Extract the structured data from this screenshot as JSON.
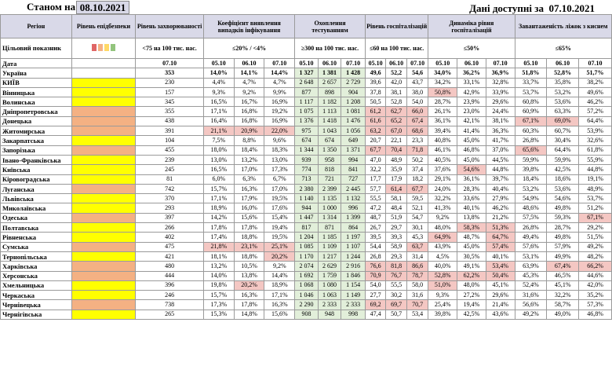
{
  "header": {
    "as_of_label": "Станом на",
    "as_of_date": "08.10.2021",
    "available_label": "Дані доступні за",
    "available_date": "07.10.2021"
  },
  "columns": {
    "region": "Регіон",
    "epi_level": "Рівень епідбезпеки",
    "morbidity": "Рівень захворюваності",
    "detection": "Коефіцієнт виявлення випадків інфікування",
    "testing": "Охоплення тестуванням",
    "hospitalization": "Рівень госпіталізацій",
    "hosp_dynamics": "Динаміка рівня госпіталізацій",
    "oxygen_load": "Завантаженість ліжок з киснем"
  },
  "targets": {
    "label": "Цільовий показник",
    "morbidity": "<75 на 100 тис. нас.",
    "detection": "≤20% / <4%",
    "testing": "≥300 на 100 тис. нас.",
    "hospitalization": "≤60 на 100 тис. нас.",
    "hosp_dynamics": "≤50%",
    "oxygen_load": "≤65%"
  },
  "traffic_colors": [
    "#e06666",
    "#f4b183",
    "#ffd966",
    "#93c47d"
  ],
  "date_label": "Дата",
  "dates": {
    "morbidity": "07.10",
    "d1": "05.10",
    "d2": "06.10",
    "d3": "07.10"
  },
  "rows": [
    {
      "region": "Україна",
      "zone": "",
      "morb": "353",
      "det": [
        "14,0%",
        "14,1%",
        "14,4%"
      ],
      "test": [
        "1 327",
        "1 381",
        "1 428"
      ],
      "hosp": [
        "49,6",
        "52,2",
        "54,6"
      ],
      "dyn": [
        "34,0%",
        "36,2%",
        "36,9%"
      ],
      "oxy": [
        "51,8%",
        "52,8%",
        "51,7%"
      ]
    },
    {
      "region": "КИЇВ",
      "zone": "y",
      "morb": "230",
      "det": [
        "4,4%",
        "4,7%",
        "4,7%"
      ],
      "test": [
        "2 648",
        "2 657",
        "2 729"
      ],
      "hosp": [
        "39,6",
        "42,0",
        "43,7"
      ],
      "dyn": [
        "34,2%",
        "33,1%",
        "32,8%"
      ],
      "oxy": [
        "33,7%",
        "35,8%",
        "38,2%"
      ]
    },
    {
      "region": "Вінницька",
      "zone": "y",
      "morb": "157",
      "det": [
        "9,3%",
        "9,2%",
        "9,9%"
      ],
      "test": [
        "877",
        "898",
        "904"
      ],
      "hosp": [
        "37,8",
        "38,1",
        "38,0"
      ],
      "dyn": [
        "50,8%",
        "42,9%",
        "33,9%"
      ],
      "oxy": [
        "53,7%",
        "53,2%",
        "49,6%"
      ]
    },
    {
      "region": "Волинська",
      "zone": "y",
      "morb": "345",
      "det": [
        "16,5%",
        "16,7%",
        "16,9%"
      ],
      "test": [
        "1 117",
        "1 182",
        "1 208"
      ],
      "hosp": [
        "50,5",
        "52,8",
        "54,0"
      ],
      "dyn": [
        "28,7%",
        "23,9%",
        "29,6%"
      ],
      "oxy": [
        "60,8%",
        "53,6%",
        "46,2%"
      ]
    },
    {
      "region": "Дніпропетровська",
      "zone": "o",
      "morb": "355",
      "det": [
        "17,1%",
        "16,8%",
        "19,2%"
      ],
      "test": [
        "1 075",
        "1 113",
        "1 081"
      ],
      "hosp": [
        "61,2",
        "62,7",
        "66,0"
      ],
      "dyn": [
        "26,1%",
        "23,0%",
        "24,4%"
      ],
      "oxy": [
        "60,9%",
        "63,3%",
        "57,2%"
      ]
    },
    {
      "region": "Донецька",
      "zone": "o",
      "morb": "438",
      "det": [
        "16,4%",
        "16,8%",
        "16,9%"
      ],
      "test": [
        "1 376",
        "1 418",
        "1 476"
      ],
      "hosp": [
        "61,6",
        "65,2",
        "67,4"
      ],
      "dyn": [
        "36,1%",
        "42,1%",
        "38,1%"
      ],
      "oxy": [
        "67,1%",
        "69,0%",
        "64,4%"
      ]
    },
    {
      "region": "Житомирська",
      "zone": "o",
      "morb": "391",
      "det": [
        "21,1%",
        "20,9%",
        "22,0%"
      ],
      "test": [
        "975",
        "1 043",
        "1 056"
      ],
      "hosp": [
        "63,2",
        "67,0",
        "68,6"
      ],
      "dyn": [
        "39,4%",
        "41,4%",
        "36,3%"
      ],
      "oxy": [
        "60,3%",
        "60,7%",
        "53,9%"
      ]
    },
    {
      "region": "Закарпатська",
      "zone": "y",
      "morb": "104",
      "det": [
        "7,5%",
        "8,8%",
        "9,6%"
      ],
      "test": [
        "674",
        "674",
        "649"
      ],
      "hosp": [
        "20,7",
        "22,1",
        "23,3"
      ],
      "dyn": [
        "40,8%",
        "45,0%",
        "41,7%"
      ],
      "oxy": [
        "26,8%",
        "30,4%",
        "32,6%"
      ]
    },
    {
      "region": "Запорізька",
      "zone": "o",
      "morb": "455",
      "det": [
        "18,0%",
        "18,4%",
        "18,3%"
      ],
      "test": [
        "1 344",
        "1 350",
        "1 371"
      ],
      "hosp": [
        "67,7",
        "70,4",
        "71,8"
      ],
      "dyn": [
        "46,1%",
        "46,8%",
        "37,0%"
      ],
      "oxy": [
        "65,6%",
        "64,4%",
        "61,8%"
      ]
    },
    {
      "region": "Івано-Франківська",
      "zone": "y",
      "morb": "239",
      "det": [
        "13,0%",
        "13,2%",
        "13,0%"
      ],
      "test": [
        "939",
        "958",
        "994"
      ],
      "hosp": [
        "47,0",
        "48,9",
        "50,2"
      ],
      "dyn": [
        "40,5%",
        "45,0%",
        "44,5%"
      ],
      "oxy": [
        "59,9%",
        "59,9%",
        "55,9%"
      ]
    },
    {
      "region": "Київська",
      "zone": "y",
      "morb": "245",
      "det": [
        "16,5%",
        "17,0%",
        "17,3%"
      ],
      "test": [
        "774",
        "818",
        "841"
      ],
      "hosp": [
        "32,2",
        "35,9",
        "37,4"
      ],
      "dyn": [
        "37,6%",
        "54,6%",
        "44,8%"
      ],
      "oxy": [
        "39,8%",
        "42,5%",
        "44,8%"
      ]
    },
    {
      "region": "Кіровоградська",
      "zone": "y",
      "morb": "81",
      "det": [
        "6,0%",
        "6,3%",
        "6,7%"
      ],
      "test": [
        "713",
        "721",
        "727"
      ],
      "hosp": [
        "17,7",
        "17,9",
        "18,2"
      ],
      "dyn": [
        "29,1%",
        "36,1%",
        "39,7%"
      ],
      "oxy": [
        "18,4%",
        "18,6%",
        "19,1%"
      ]
    },
    {
      "region": "Луганська",
      "zone": "o",
      "morb": "742",
      "det": [
        "15,7%",
        "16,3%",
        "17,0%"
      ],
      "test": [
        "2 380",
        "2 399",
        "2 445"
      ],
      "hosp": [
        "57,7",
        "61,4",
        "67,7"
      ],
      "dyn": [
        "24,0%",
        "28,3%",
        "40,4%"
      ],
      "oxy": [
        "53,2%",
        "53,6%",
        "48,9%"
      ]
    },
    {
      "region": "Львівська",
      "zone": "y",
      "morb": "370",
      "det": [
        "17,1%",
        "17,9%",
        "19,5%"
      ],
      "test": [
        "1 140",
        "1 135",
        "1 132"
      ],
      "hosp": [
        "55,5",
        "58,1",
        "59,5"
      ],
      "dyn": [
        "32,2%",
        "33,6%",
        "27,9%"
      ],
      "oxy": [
        "54,9%",
        "54,6%",
        "53,7%"
      ]
    },
    {
      "region": "Миколаївська",
      "zone": "y",
      "morb": "293",
      "det": [
        "18,9%",
        "16,0%",
        "17,6%"
      ],
      "test": [
        "944",
        "1 000",
        "996"
      ],
      "hosp": [
        "47,2",
        "48,4",
        "52,1"
      ],
      "dyn": [
        "41,3%",
        "40,1%",
        "46,2%"
      ],
      "oxy": [
        "48,6%",
        "49,8%",
        "51,2%"
      ]
    },
    {
      "region": "Одеська",
      "zone": "o",
      "morb": "397",
      "det": [
        "14,2%",
        "15,6%",
        "15,4%"
      ],
      "test": [
        "1 447",
        "1 314",
        "1 399"
      ],
      "hosp": [
        "48,7",
        "51,9",
        "54,7"
      ],
      "dyn": [
        "9,2%",
        "13,8%",
        "21,2%"
      ],
      "oxy": [
        "57,5%",
        "59,3%",
        "67,1%"
      ]
    },
    {
      "region": "Полтавська",
      "zone": "y",
      "morb": "266",
      "det": [
        "17,8%",
        "17,8%",
        "19,4%"
      ],
      "test": [
        "817",
        "871",
        "864"
      ],
      "hosp": [
        "26,7",
        "29,7",
        "30,1"
      ],
      "dyn": [
        "48,0%",
        "58,3%",
        "51,3%"
      ],
      "oxy": [
        "26,8%",
        "28,7%",
        "29,2%"
      ]
    },
    {
      "region": "Рівненська",
      "zone": "y",
      "morb": "402",
      "det": [
        "17,4%",
        "18,8%",
        "19,5%"
      ],
      "test": [
        "1 204",
        "1 185",
        "1 197"
      ],
      "hosp": [
        "39,5",
        "39,3",
        "45,3"
      ],
      "dyn": [
        "64,9%",
        "48,7%",
        "64,7%"
      ],
      "oxy": [
        "49,4%",
        "49,8%",
        "51,5%"
      ]
    },
    {
      "region": "Сумська",
      "zone": "o",
      "morb": "475",
      "det": [
        "21,8%",
        "23,1%",
        "25,1%"
      ],
      "test": [
        "1 085",
        "1 109",
        "1 107"
      ],
      "hosp": [
        "54,4",
        "58,9",
        "63,7"
      ],
      "dyn": [
        "43,9%",
        "45,0%",
        "57,4%"
      ],
      "oxy": [
        "57,6%",
        "57,9%",
        "49,2%"
      ]
    },
    {
      "region": "Тернопільська",
      "zone": "y",
      "morb": "421",
      "det": [
        "18,1%",
        "18,8%",
        "20,2%"
      ],
      "test": [
        "1 170",
        "1 217",
        "1 244"
      ],
      "hosp": [
        "26,8",
        "29,3",
        "31,4"
      ],
      "dyn": [
        "4,5%",
        "30,5%",
        "40,1%"
      ],
      "oxy": [
        "53,1%",
        "49,9%",
        "48,2%"
      ]
    },
    {
      "region": "Харківська",
      "zone": "o",
      "morb": "480",
      "det": [
        "13,2%",
        "10,5%",
        "9,2%"
      ],
      "test": [
        "2 074",
        "2 629",
        "2 916"
      ],
      "hosp": [
        "76,6",
        "81,8",
        "86,6"
      ],
      "dyn": [
        "40,0%",
        "49,1%",
        "53,4%"
      ],
      "oxy": [
        "63,9%",
        "67,4%",
        "66,2%"
      ]
    },
    {
      "region": "Херсонська",
      "zone": "o",
      "morb": "444",
      "det": [
        "14,0%",
        "13,8%",
        "14,4%"
      ],
      "test": [
        "1 692",
        "1 759",
        "1 846"
      ],
      "hosp": [
        "70,9",
        "76,7",
        "78,7"
      ],
      "dyn": [
        "52,8%",
        "62,2%",
        "50,4%"
      ],
      "oxy": [
        "45,3%",
        "46,5%",
        "44,6%"
      ]
    },
    {
      "region": "Хмельницька",
      "zone": "y",
      "morb": "396",
      "det": [
        "19,8%",
        "20,2%",
        "18,9%"
      ],
      "test": [
        "1 068",
        "1 080",
        "1 154"
      ],
      "hosp": [
        "54,0",
        "55,5",
        "58,0"
      ],
      "dyn": [
        "51,0%",
        "48,0%",
        "45,1%"
      ],
      "oxy": [
        "52,4%",
        "45,1%",
        "42,0%"
      ]
    },
    {
      "region": "Черкаська",
      "zone": "y",
      "morb": "246",
      "det": [
        "15,7%",
        "16,3%",
        "17,1%"
      ],
      "test": [
        "1 046",
        "1 063",
        "1 149"
      ],
      "hosp": [
        "27,7",
        "30,2",
        "31,6"
      ],
      "dyn": [
        "9,3%",
        "27,2%",
        "29,6%"
      ],
      "oxy": [
        "31,6%",
        "32,2%",
        "35,2%"
      ]
    },
    {
      "region": "Чернівецька",
      "zone": "o",
      "morb": "738",
      "det": [
        "17,3%",
        "17,8%",
        "16,3%"
      ],
      "test": [
        "2 290",
        "2 333",
        "2 333"
      ],
      "hosp": [
        "69,2",
        "69,7",
        "70,7"
      ],
      "dyn": [
        "25,4%",
        "19,4%",
        "21,4%"
      ],
      "oxy": [
        "56,6%",
        "58,7%",
        "57,3%"
      ]
    },
    {
      "region": "Чернігівська",
      "zone": "y",
      "morb": "265",
      "det": [
        "15,3%",
        "14,8%",
        "15,6%"
      ],
      "test": [
        "908",
        "948",
        "998"
      ],
      "hosp": [
        "47,4",
        "50,7",
        "53,4"
      ],
      "dyn": [
        "39,8%",
        "42,5%",
        "43,6%"
      ],
      "oxy": [
        "49,2%",
        "49,0%",
        "46,8%"
      ]
    }
  ]
}
